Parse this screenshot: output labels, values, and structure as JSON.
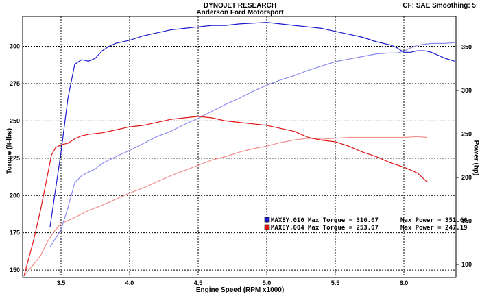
{
  "header": {
    "title": "DYNOJET RESEARCH",
    "subtitle": "Anderson Ford Motorsport",
    "cf_label": "CF: SAE  Smoothing: 5"
  },
  "chart_data": {
    "type": "line",
    "title": "DYNOJET RESEARCH",
    "subtitle": "Anderson Ford Motorsport",
    "xlabel": "Engine Speed (RPM x1000)",
    "ylabel_left": "Torque (ft-lbs)",
    "ylabel_right": "Power (hp)",
    "xlim": [
      3.22,
      6.38
    ],
    "ylim_left": [
      145,
      320
    ],
    "ylim_right": [
      85,
      385
    ],
    "x_ticks": [
      "3.5",
      "4.0",
      "4.5",
      "5.0",
      "5.5",
      "6.0"
    ],
    "y_left_ticks": [
      "150",
      "175",
      "200",
      "225",
      "250",
      "275",
      "300"
    ],
    "y_right_ticks": [
      "100",
      "150",
      "200",
      "250",
      "300",
      "350"
    ],
    "grid": true,
    "legend_position": "bottom-right",
    "colors": {
      "run_010": "#1a1acc",
      "run_010_light": "#8c8cf0",
      "run_004": "#e01515",
      "run_004_light": "#f0908c"
    },
    "legend": [
      {
        "run": "MAXEY.010",
        "torque_label": "Max Torque = 316.07",
        "power_label": "Max Power = 351.66",
        "color": "#1a1acc"
      },
      {
        "run": "MAXEY.004",
        "torque_label": "Max Torque = 253.07",
        "power_label": "Max Power = 247.19",
        "color": "#e01515"
      }
    ],
    "series": [
      {
        "name": "MAXEY.010 Torque",
        "axis": "left",
        "color": "#1a1acc",
        "x": [
          3.42,
          3.5,
          3.55,
          3.6,
          3.65,
          3.7,
          3.75,
          3.8,
          3.85,
          3.9,
          4.0,
          4.1,
          4.2,
          4.3,
          4.4,
          4.5,
          4.6,
          4.7,
          4.8,
          4.9,
          5.0,
          5.1,
          5.2,
          5.3,
          5.4,
          5.5,
          5.6,
          5.7,
          5.8,
          5.9,
          5.95,
          6.0,
          6.05,
          6.1,
          6.15,
          6.2,
          6.3,
          6.37
        ],
        "y": [
          179,
          229,
          265,
          288,
          291,
          290,
          292,
          297,
          300,
          302,
          304,
          307,
          309,
          311,
          312,
          313,
          314,
          314,
          315,
          315.5,
          316,
          315,
          314,
          313,
          312,
          310,
          308,
          306,
          303,
          301,
          299,
          296,
          296,
          297,
          297,
          296,
          292,
          290
        ]
      },
      {
        "name": "MAXEY.010 Power",
        "axis": "right",
        "color": "#8c8cf0",
        "x": [
          3.42,
          3.5,
          3.55,
          3.6,
          3.65,
          3.7,
          3.75,
          3.8,
          3.9,
          4.0,
          4.1,
          4.2,
          4.3,
          4.4,
          4.5,
          4.6,
          4.7,
          4.8,
          4.9,
          5.0,
          5.1,
          5.2,
          5.3,
          5.4,
          5.5,
          5.6,
          5.7,
          5.8,
          5.9,
          5.95,
          6.0,
          6.05,
          6.1,
          6.2,
          6.3,
          6.37
        ],
        "y": [
          120,
          140,
          165,
          194,
          202,
          206,
          210,
          216,
          224,
          231,
          239,
          247,
          253,
          261,
          268,
          276,
          284,
          291,
          299,
          306,
          312,
          317,
          323,
          328,
          333,
          336,
          339,
          342,
          343,
          343,
          345,
          349,
          352,
          354,
          354,
          355
        ]
      },
      {
        "name": "MAXEY.004 Torque",
        "axis": "left",
        "color": "#e01515",
        "x": [
          3.23,
          3.3,
          3.35,
          3.4,
          3.43,
          3.46,
          3.5,
          3.55,
          3.6,
          3.65,
          3.7,
          3.8,
          3.9,
          4.0,
          4.1,
          4.2,
          4.3,
          4.4,
          4.5,
          4.6,
          4.7,
          4.8,
          4.9,
          5.0,
          5.1,
          5.2,
          5.3,
          5.4,
          5.5,
          5.6,
          5.7,
          5.8,
          5.9,
          6.0,
          6.1,
          6.17
        ],
        "y": [
          146,
          170,
          190,
          213,
          227,
          232,
          234,
          235,
          238,
          240,
          241,
          242,
          244,
          246,
          247,
          249,
          251,
          252,
          253,
          252,
          250,
          249,
          248,
          247,
          245,
          243,
          239,
          237,
          236,
          233,
          229,
          226,
          222,
          219,
          215,
          209
        ]
      },
      {
        "name": "MAXEY.004 Power",
        "axis": "right",
        "color": "#f0908c",
        "x": [
          3.23,
          3.3,
          3.35,
          3.4,
          3.45,
          3.5,
          3.6,
          3.7,
          3.8,
          3.9,
          4.0,
          4.1,
          4.2,
          4.3,
          4.4,
          4.5,
          4.6,
          4.7,
          4.8,
          4.9,
          5.0,
          5.1,
          5.2,
          5.3,
          5.4,
          5.5,
          5.6,
          5.7,
          5.8,
          5.9,
          6.0,
          6.1,
          6.17
        ],
        "y": [
          87,
          100,
          110,
          126,
          138,
          147,
          154,
          162,
          168,
          175,
          182,
          188,
          195,
          202,
          208,
          214,
          220,
          224,
          229,
          233,
          236,
          240,
          243,
          245,
          244,
          245,
          246,
          246,
          246,
          246,
          246,
          247,
          246
        ]
      }
    ]
  }
}
